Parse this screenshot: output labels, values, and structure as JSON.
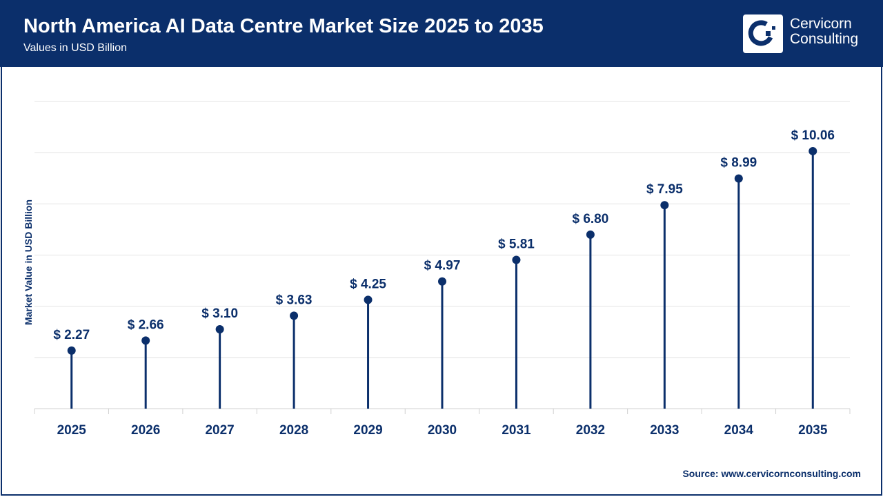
{
  "header": {
    "title": "North America AI Data Centre Market Size 2025 to 2035",
    "subtitle": "Values in USD Billion",
    "brand_line1": "Cervicorn",
    "brand_line2": "Consulting"
  },
  "source": "Source: www.cervicornconsulting.com",
  "colors": {
    "primary": "#0b2f6b",
    "grid": "#e3e3e3"
  },
  "chart_data": {
    "type": "lollipop",
    "title": "North America AI Data Centre Market Size 2025 to 2035",
    "ylabel": "Market Value in USD Billion",
    "categories": [
      "2025",
      "2026",
      "2027",
      "2028",
      "2029",
      "2030",
      "2031",
      "2032",
      "2033",
      "2034",
      "2035"
    ],
    "values": [
      2.27,
      2.66,
      3.1,
      3.63,
      4.25,
      4.97,
      5.81,
      6.8,
      7.95,
      8.99,
      10.06
    ],
    "data_labels": [
      "$ 2.27",
      "$ 2.66",
      "$ 3.10",
      "$ 3.63",
      "$ 4.25",
      "$ 4.97",
      "$ 5.81",
      "$ 6.80",
      "$ 7.95",
      "$ 8.99",
      "$ 10.06"
    ],
    "ylim": [
      0,
      12
    ],
    "grid": true
  }
}
